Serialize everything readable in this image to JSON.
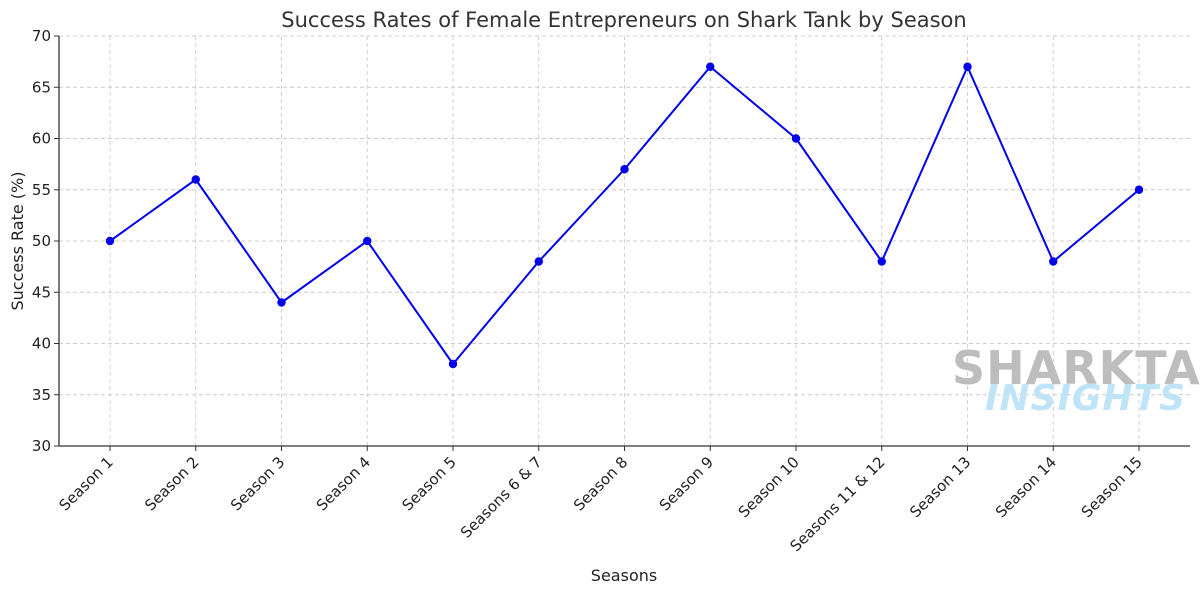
{
  "chart_data": {
    "type": "line",
    "title": "Success Rates of Female Entrepreneurs on Shark Tank by Season",
    "xlabel": "Seasons",
    "ylabel": "Success Rate (%)",
    "categories": [
      "Season 1",
      "Season 2",
      "Season 3",
      "Season 4",
      "Season 5",
      "Seasons 6 & 7",
      "Season 8",
      "Season 9",
      "Season 10",
      "Seasons 11 & 12",
      "Season 13",
      "Season 14",
      "Season 15"
    ],
    "series": [
      {
        "values": [
          50,
          56,
          44,
          50,
          38,
          48,
          57,
          67,
          60,
          48,
          67,
          48,
          55
        ],
        "color": "#0000ee"
      }
    ],
    "ylim": [
      30,
      70
    ],
    "yticks": [
      30,
      35,
      40,
      45,
      50,
      55,
      60,
      65,
      70
    ],
    "grid": true,
    "marker": "circle"
  },
  "watermark": {
    "line1": "SHARKTANK",
    "line2": "INSIGHTS"
  }
}
